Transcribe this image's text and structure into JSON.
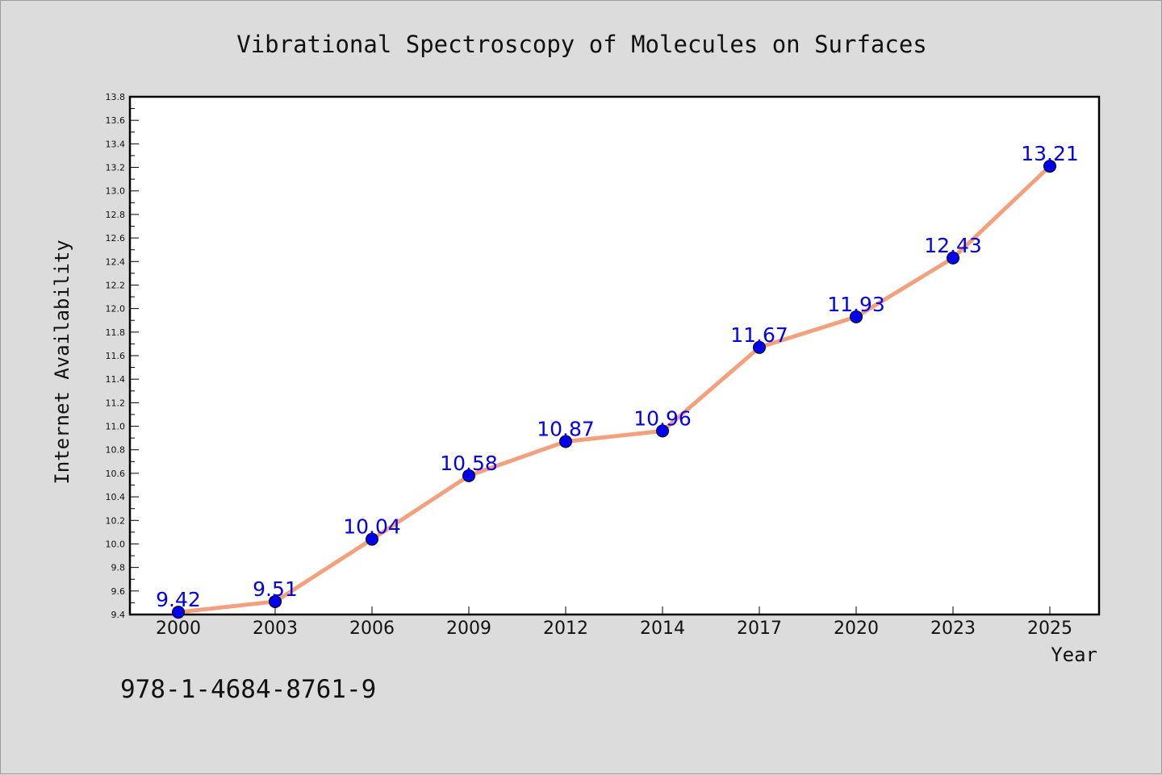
{
  "chart_data": {
    "type": "line",
    "title": "Vibrational Spectroscopy of Molecules on Surfaces",
    "xlabel": "Year",
    "ylabel": "Internet Availability",
    "categories": [
      "2000",
      "2003",
      "2006",
      "2009",
      "2012",
      "2014",
      "2017",
      "2020",
      "2023",
      "2025"
    ],
    "series": [
      {
        "values": [
          9.42,
          9.51,
          10.04,
          10.58,
          10.87,
          10.96,
          11.67,
          11.93,
          12.43,
          13.21
        ],
        "labels": [
          "9.42",
          "9.51",
          "10.04",
          "10.58",
          "10.87",
          "10.96",
          "11.67",
          "11.93",
          "12.43",
          "13.21"
        ]
      }
    ],
    "ylim": [
      9.4,
      13.8
    ],
    "yticks": [
      "9.4",
      "9.6",
      "9.8",
      "10.0",
      "10.2",
      "10.4",
      "10.6",
      "10.8",
      "11.0",
      "11.2",
      "11.4",
      "11.6",
      "11.8",
      "12.0",
      "12.2",
      "12.4",
      "12.6",
      "12.8",
      "13.0",
      "13.2",
      "13.4",
      "13.6",
      "13.8"
    ],
    "grid": false,
    "legend": "none",
    "colors": {
      "line": "#f4a07c",
      "marker": "#0000ee",
      "marker_edge": "#000000",
      "data_label": "#0000ee",
      "plot_bg": "#ffffff",
      "page_bg": "#dcdcdc"
    }
  },
  "footer": {
    "isbn": "978-1-4684-8761-9"
  }
}
